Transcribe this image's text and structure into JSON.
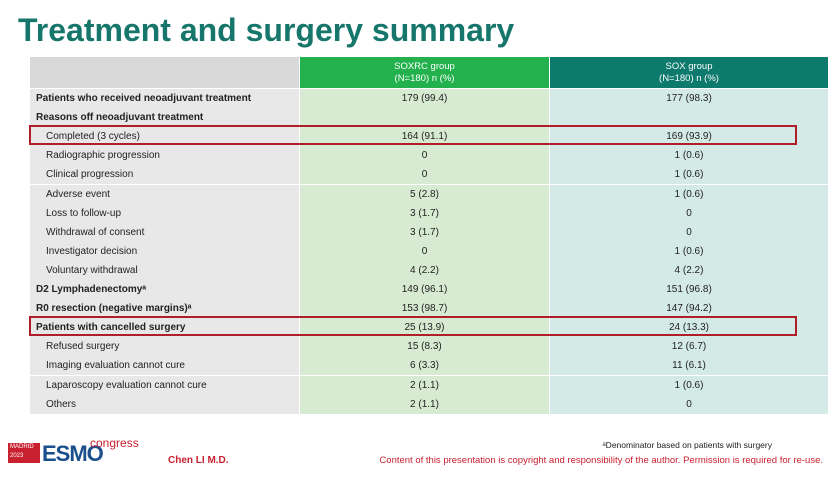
{
  "header": {
    "title": "Treatment and surgery summary"
  },
  "table": {
    "columns": [
      "SOXRC group\n(N=180)  n (%)",
      "SOX group\n(N=180)  n (%)"
    ],
    "rows": [
      {
        "label": "Patients who received neoadjuvant treatment",
        "soxrc": "179 (99.4)",
        "sox": "177 (98.3)",
        "bold": true
      },
      {
        "label": "Reasons off neoadjuvant treatment",
        "bold": true
      },
      {
        "label": "Completed (3 cycles)",
        "soxrc": "164 (91.1)",
        "sox": "169 (93.9)",
        "highlighted": true
      },
      {
        "label": "Radiographic progression",
        "soxrc": "0",
        "sox": "1 (0.6)"
      },
      {
        "label": "Clinical progression",
        "soxrc": "0",
        "sox": "1 (0.6)"
      },
      {
        "label": "Adverse event",
        "soxrc": "5 (2.8)",
        "sox": "1 (0.6)"
      },
      {
        "label": "Loss to follow-up",
        "soxrc": "3 (1.7)",
        "sox": "0"
      },
      {
        "label": "Withdrawal of consent",
        "soxrc": "3 (1.7)",
        "sox": "0"
      },
      {
        "label": "Investigator decision",
        "soxrc": "0",
        "sox": "1 (0.6)"
      },
      {
        "label": "Voluntary withdrawal",
        "soxrc": "4 (2.2)",
        "sox": "4 (2.2)"
      },
      {
        "label": "D2 Lymphadenectomyᵃ",
        "soxrc": "149 (96.1)",
        "sox": "151 (96.8)",
        "bold": true
      },
      {
        "label": "R0 resection (negative margins)ᵃ",
        "soxrc": "153 (98.7)",
        "sox": "147 (94.2)",
        "bold": true
      },
      {
        "label": "Patients with cancelled surgery",
        "soxrc": "25 (13.9)",
        "sox": "24 (13.3)",
        "bold": true,
        "highlighted": true
      },
      {
        "label": "Refused surgery",
        "soxrc": "15 (8.3)",
        "sox": "12 (6.7)"
      },
      {
        "label": "Imaging evaluation cannot cure",
        "soxrc": "6 (3.3)",
        "sox": "11 (6.1)"
      },
      {
        "label": "Laparoscopy evaluation cannot cure",
        "soxrc": "2 (1.1)",
        "sox": "1 (0.6)"
      },
      {
        "label": "Others",
        "soxrc": "2 (1.1)",
        "sox": "0"
      }
    ]
  },
  "footer": {
    "logo_city": "MADRID",
    "logo_year": "2023",
    "logo_name": "ESMO",
    "logo_word": "congress",
    "author": "Chen LI M.D.",
    "footnote": "ᵃDenominator based on patients with surgery",
    "copyright": "Content of this presentation is copyright and responsibility of the author. Permission is required for re-use."
  }
}
